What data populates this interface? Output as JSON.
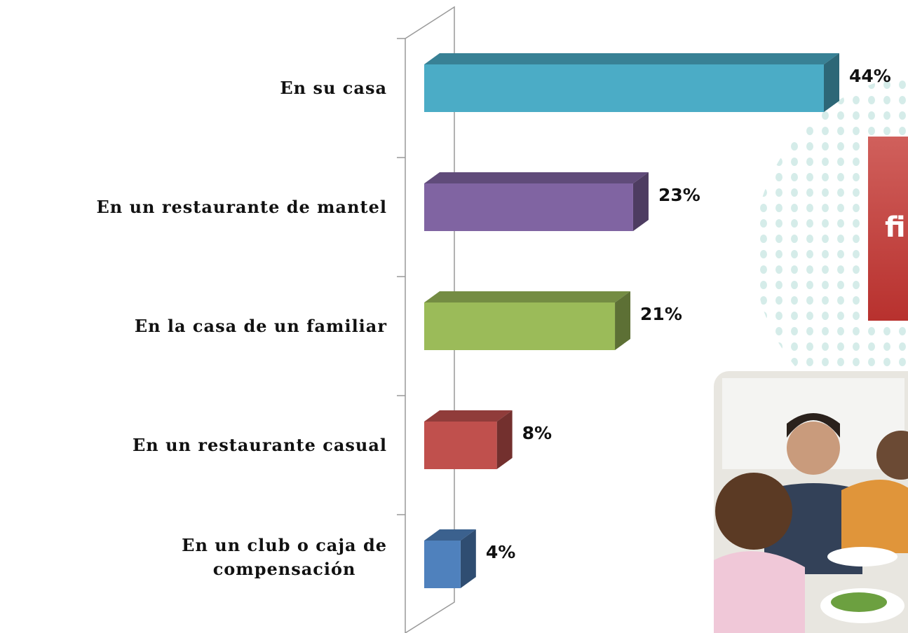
{
  "chart_data": {
    "type": "bar3d",
    "categories": [
      "En su casa",
      "En un restaurante de mantel",
      "En la casa de un familiar",
      "En un restaurante casual",
      "En un club o caja de\ncompensación"
    ],
    "values": [
      44,
      23,
      21,
      8,
      4
    ],
    "value_labels": [
      "44%",
      "23%",
      "21%",
      "8%",
      "4%"
    ],
    "colors": [
      "#4bacc6",
      "#8064a2",
      "#9bbb59",
      "#c0504d",
      "#4f81bd"
    ],
    "annotation": "fi"
  }
}
